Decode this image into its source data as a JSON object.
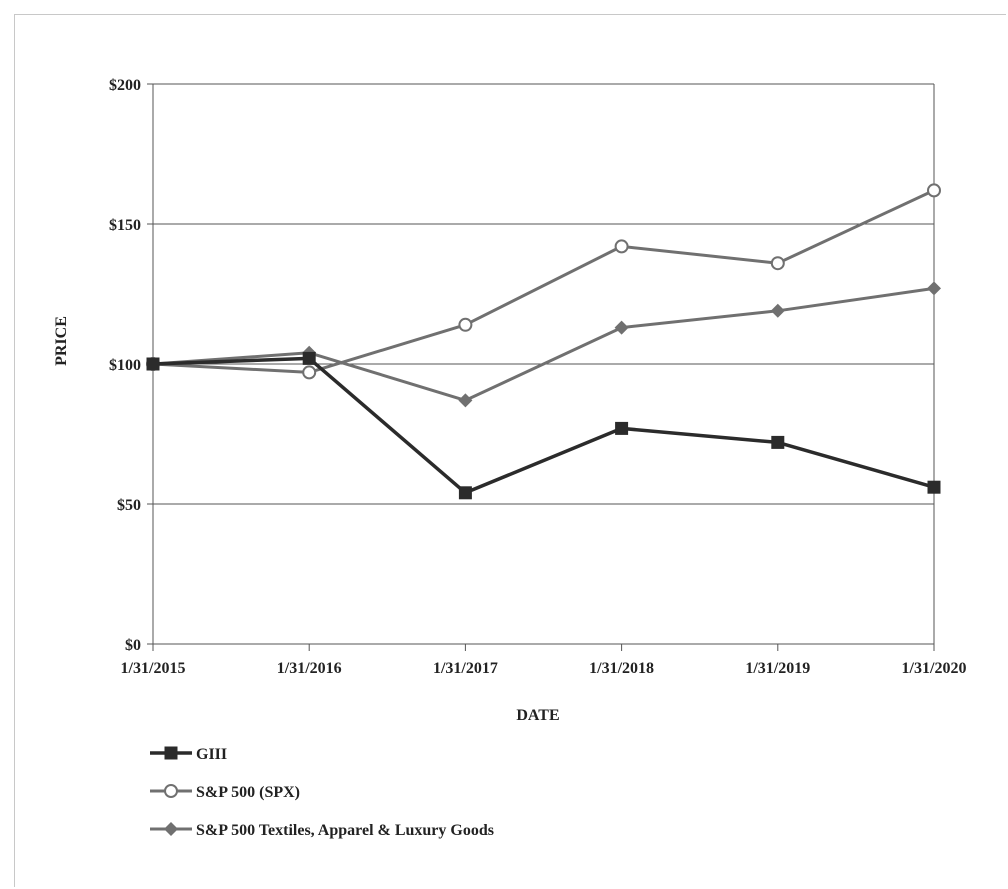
{
  "chart_data": {
    "type": "line",
    "title": "",
    "xlabel": "DATE",
    "ylabel": "PRICE",
    "x": [
      "1/31/2015",
      "1/31/2016",
      "1/31/2017",
      "1/31/2018",
      "1/31/2019",
      "1/31/2020"
    ],
    "ylim": [
      0,
      200
    ],
    "yticks": [
      0,
      50,
      100,
      150,
      200
    ],
    "ytick_labels": [
      "$0",
      "$50",
      "$100",
      "$150",
      "$200"
    ],
    "grid": "horizontal",
    "legend_position": "bottom-left",
    "series": [
      {
        "name": "GIII",
        "values": [
          100,
          102,
          54,
          77,
          72,
          56
        ],
        "color": "#2b2b2b",
        "marker": "filled-square"
      },
      {
        "name": "S&P 500 (SPX)",
        "values": [
          100,
          97,
          114,
          142,
          136,
          162
        ],
        "color": "#707070",
        "marker": "open-circle"
      },
      {
        "name": "S&P 500 Textiles, Apparel & Luxury Goods",
        "values": [
          100,
          104,
          87,
          113,
          119,
          127
        ],
        "color": "#707070",
        "marker": "filled-diamond"
      }
    ]
  }
}
